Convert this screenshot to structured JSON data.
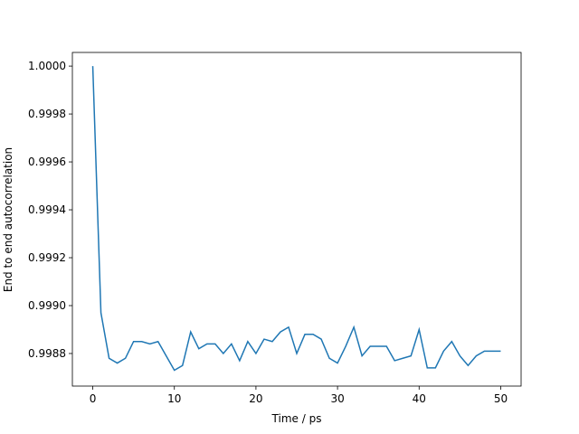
{
  "chart_data": {
    "type": "line",
    "xlabel": "Time / ps",
    "ylabel": "End to end autocorrelation",
    "x": [
      0,
      1,
      2,
      3,
      4,
      5,
      6,
      7,
      8,
      9,
      10,
      11,
      12,
      13,
      14,
      15,
      16,
      17,
      18,
      19,
      20,
      21,
      22,
      23,
      24,
      25,
      26,
      27,
      28,
      29,
      30,
      31,
      32,
      33,
      34,
      35,
      36,
      37,
      38,
      39,
      40,
      41,
      42,
      43,
      44,
      45,
      46,
      47,
      48,
      49,
      50
    ],
    "series": [
      {
        "color": "#1f77b4",
        "values": [
          1.0,
          0.99897,
          0.99878,
          0.99876,
          0.99878,
          0.99885,
          0.99885,
          0.99884,
          0.99885,
          0.99879,
          0.99873,
          0.99875,
          0.99889,
          0.99882,
          0.99884,
          0.99884,
          0.9988,
          0.99884,
          0.99877,
          0.99885,
          0.9988,
          0.99886,
          0.99885,
          0.99889,
          0.99891,
          0.9988,
          0.99888,
          0.99888,
          0.99886,
          0.99878,
          0.99876,
          0.99883,
          0.99891,
          0.99879,
          0.99883,
          0.99883,
          0.99883,
          0.99877,
          0.99878,
          0.99879,
          0.9989,
          0.99874,
          0.99874,
          0.99881,
          0.99885,
          0.99879,
          0.99875,
          0.99879,
          0.99881,
          0.99881,
          0.99881
        ]
      }
    ],
    "xlim": [
      -2.5,
      52.5
    ],
    "ylim": [
      0.998664,
      1.000057
    ],
    "xticks": [
      0,
      10,
      20,
      30,
      40,
      50
    ],
    "yticks": [
      {
        "value": 0.9988,
        "label": "0.9988"
      },
      {
        "value": 0.999,
        "label": "0.9990"
      },
      {
        "value": 0.9992,
        "label": "0.9992"
      },
      {
        "value": 0.9994,
        "label": "0.9994"
      },
      {
        "value": 0.9996,
        "label": "0.9996"
      },
      {
        "value": 0.9998,
        "label": "0.9998"
      },
      {
        "value": 1.0,
        "label": "1.0000"
      }
    ]
  }
}
